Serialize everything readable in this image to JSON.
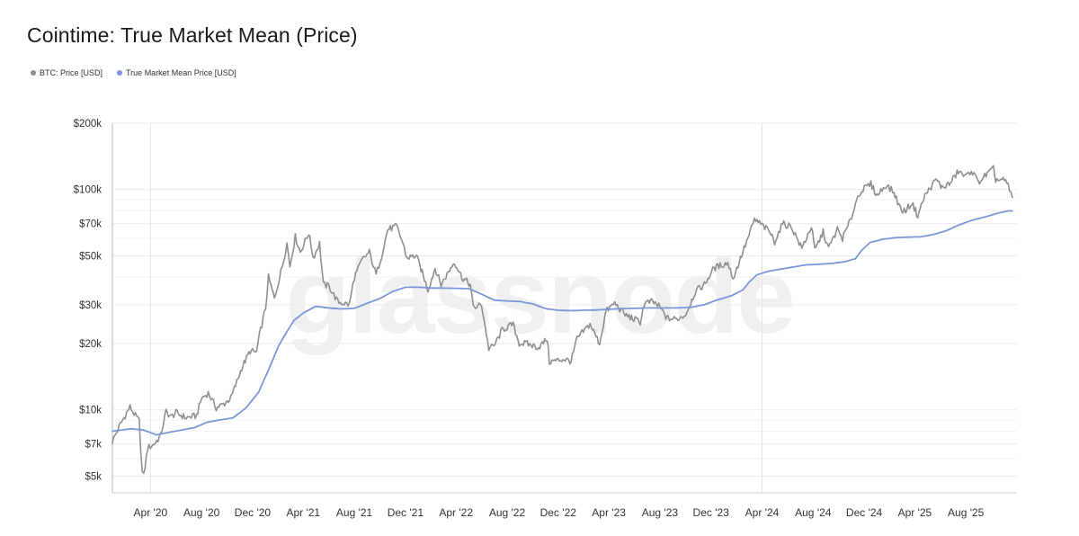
{
  "chart_data": {
    "type": "line",
    "title": "Cointime: True Market Mean (Price)",
    "watermark": "glassnode",
    "y_scale": "log",
    "ylim": [
      4200,
      200000
    ],
    "xlim": [
      "2020-01-01",
      "2025-12-01"
    ],
    "y_ticks": [
      {
        "value": 5000,
        "label": "$5k"
      },
      {
        "value": 7000,
        "label": "$7k"
      },
      {
        "value": 10000,
        "label": "$10k"
      },
      {
        "value": 20000,
        "label": "$20k"
      },
      {
        "value": 30000,
        "label": "$30k"
      },
      {
        "value": 50000,
        "label": "$50k"
      },
      {
        "value": 70000,
        "label": "$70k"
      },
      {
        "value": 100000,
        "label": "$100k"
      },
      {
        "value": 200000,
        "label": "$200k"
      }
    ],
    "x_ticks": [
      {
        "date": "2020-04-01",
        "label": "Apr '20"
      },
      {
        "date": "2020-08-01",
        "label": "Aug '20"
      },
      {
        "date": "2020-12-01",
        "label": "Dec '20"
      },
      {
        "date": "2021-04-01",
        "label": "Apr '21"
      },
      {
        "date": "2021-08-01",
        "label": "Aug '21"
      },
      {
        "date": "2021-12-01",
        "label": "Dec '21"
      },
      {
        "date": "2022-04-01",
        "label": "Apr '22"
      },
      {
        "date": "2022-08-01",
        "label": "Aug '22"
      },
      {
        "date": "2022-12-01",
        "label": "Dec '22"
      },
      {
        "date": "2023-04-01",
        "label": "Apr '23"
      },
      {
        "date": "2023-08-01",
        "label": "Aug '23"
      },
      {
        "date": "2023-12-01",
        "label": "Dec '23"
      },
      {
        "date": "2024-04-01",
        "label": "Apr '24"
      },
      {
        "date": "2024-08-01",
        "label": "Aug '24"
      },
      {
        "date": "2024-12-01",
        "label": "Dec '24"
      },
      {
        "date": "2025-04-01",
        "label": "Apr '25"
      },
      {
        "date": "2025-08-01",
        "label": "Aug '25"
      }
    ],
    "grid": true,
    "legend_position": "top-left",
    "series": [
      {
        "name": "BTC: Price [USD]",
        "color": "#8c908e",
        "points": [
          [
            "2020-01-01",
            7200
          ],
          [
            "2020-01-20",
            8600
          ],
          [
            "2020-02-12",
            10300
          ],
          [
            "2020-02-25",
            9400
          ],
          [
            "2020-03-05",
            8900
          ],
          [
            "2020-03-12",
            5200
          ],
          [
            "2020-03-16",
            5000
          ],
          [
            "2020-03-25",
            6700
          ],
          [
            "2020-04-10",
            7000
          ],
          [
            "2020-04-25",
            7600
          ],
          [
            "2020-05-08",
            9800
          ],
          [
            "2020-05-20",
            9300
          ],
          [
            "2020-06-01",
            9700
          ],
          [
            "2020-06-25",
            9200
          ],
          [
            "2020-07-20",
            9400
          ],
          [
            "2020-08-01",
            11300
          ],
          [
            "2020-08-17",
            11900
          ],
          [
            "2020-09-05",
            10200
          ],
          [
            "2020-09-25",
            10700
          ],
          [
            "2020-10-10",
            11300
          ],
          [
            "2020-10-21",
            12900
          ],
          [
            "2020-11-05",
            15500
          ],
          [
            "2020-11-25",
            18500
          ],
          [
            "2020-12-10",
            18200
          ],
          [
            "2020-12-20",
            23000
          ],
          [
            "2021-01-01",
            29000
          ],
          [
            "2021-01-08",
            40000
          ],
          [
            "2021-01-22",
            32000
          ],
          [
            "2021-02-10",
            45000
          ],
          [
            "2021-02-21",
            57000
          ],
          [
            "2021-02-28",
            45000
          ],
          [
            "2021-03-13",
            61000
          ],
          [
            "2021-03-25",
            52000
          ],
          [
            "2021-04-14",
            63500
          ],
          [
            "2021-04-25",
            49000
          ],
          [
            "2021-05-10",
            57000
          ],
          [
            "2021-05-19",
            37000
          ],
          [
            "2021-06-01",
            36500
          ],
          [
            "2021-06-22",
            31000
          ],
          [
            "2021-07-20",
            30000
          ],
          [
            "2021-08-01",
            40000
          ],
          [
            "2021-08-20",
            48000
          ],
          [
            "2021-09-06",
            52000
          ],
          [
            "2021-09-22",
            41000
          ],
          [
            "2021-10-05",
            50000
          ],
          [
            "2021-10-20",
            66000
          ],
          [
            "2021-11-10",
            68000
          ],
          [
            "2021-11-25",
            57000
          ],
          [
            "2021-12-04",
            49000
          ],
          [
            "2021-12-27",
            50000
          ],
          [
            "2022-01-10",
            42000
          ],
          [
            "2022-01-24",
            35000
          ],
          [
            "2022-02-10",
            44000
          ],
          [
            "2022-02-24",
            37000
          ],
          [
            "2022-03-28",
            47000
          ],
          [
            "2022-04-15",
            40000
          ],
          [
            "2022-05-05",
            37000
          ],
          [
            "2022-05-12",
            29000
          ],
          [
            "2022-06-01",
            30000
          ],
          [
            "2022-06-18",
            19000
          ],
          [
            "2022-07-01",
            19500
          ],
          [
            "2022-07-20",
            23000
          ],
          [
            "2022-08-15",
            24500
          ],
          [
            "2022-08-30",
            20000
          ],
          [
            "2022-09-15",
            20000
          ],
          [
            "2022-10-15",
            19200
          ],
          [
            "2022-11-05",
            21000
          ],
          [
            "2022-11-10",
            16500
          ],
          [
            "2022-12-15",
            17000
          ],
          [
            "2023-01-01",
            16600
          ],
          [
            "2023-01-15",
            21000
          ],
          [
            "2023-02-15",
            24500
          ],
          [
            "2023-03-10",
            20000
          ],
          [
            "2023-03-25",
            28000
          ],
          [
            "2023-04-15",
            30500
          ],
          [
            "2023-05-10",
            27000
          ],
          [
            "2023-06-15",
            25000
          ],
          [
            "2023-06-25",
            30500
          ],
          [
            "2023-07-15",
            31000
          ],
          [
            "2023-08-01",
            29200
          ],
          [
            "2023-08-18",
            26000
          ],
          [
            "2023-09-10",
            25800
          ],
          [
            "2023-10-01",
            27000
          ],
          [
            "2023-10-25",
            34500
          ],
          [
            "2023-11-15",
            37000
          ],
          [
            "2023-12-08",
            44000
          ],
          [
            "2024-01-10",
            46500
          ],
          [
            "2024-01-23",
            39500
          ],
          [
            "2024-02-15",
            52000
          ],
          [
            "2024-03-01",
            62000
          ],
          [
            "2024-03-14",
            73000
          ],
          [
            "2024-04-01",
            69000
          ],
          [
            "2024-04-20",
            64000
          ],
          [
            "2024-05-01",
            58000
          ],
          [
            "2024-05-20",
            70000
          ],
          [
            "2024-06-10",
            68000
          ],
          [
            "2024-07-05",
            54000
          ],
          [
            "2024-07-28",
            68000
          ],
          [
            "2024-08-05",
            53000
          ],
          [
            "2024-08-25",
            64000
          ],
          [
            "2024-09-07",
            54000
          ],
          [
            "2024-09-28",
            66000
          ],
          [
            "2024-10-10",
            60000
          ],
          [
            "2024-10-29",
            72000
          ],
          [
            "2024-11-13",
            90000
          ],
          [
            "2024-11-22",
            98000
          ],
          [
            "2024-12-17",
            106000
          ],
          [
            "2025-01-01",
            94000
          ],
          [
            "2025-01-22",
            105000
          ],
          [
            "2025-02-10",
            97000
          ],
          [
            "2025-02-28",
            80000
          ],
          [
            "2025-03-10",
            80500
          ],
          [
            "2025-03-25",
            87000
          ],
          [
            "2025-04-08",
            76000
          ],
          [
            "2025-04-25",
            94000
          ],
          [
            "2025-05-10",
            103000
          ],
          [
            "2025-05-22",
            111000
          ],
          [
            "2025-06-05",
            102000
          ],
          [
            "2025-06-25",
            107000
          ],
          [
            "2025-07-14",
            121000
          ],
          [
            "2025-08-01",
            114000
          ],
          [
            "2025-08-14",
            123000
          ],
          [
            "2025-08-30",
            108000
          ],
          [
            "2025-09-15",
            115000
          ],
          [
            "2025-10-06",
            124000
          ],
          [
            "2025-10-11",
            111000
          ],
          [
            "2025-11-01",
            110000
          ],
          [
            "2025-11-10",
            104000
          ],
          [
            "2025-11-20",
            92000
          ]
        ]
      },
      {
        "name": "True Market Mean Price [USD]",
        "color": "#7c97d8",
        "points": [
          [
            "2020-01-01",
            8000
          ],
          [
            "2020-02-15",
            8200
          ],
          [
            "2020-03-15",
            8100
          ],
          [
            "2020-04-15",
            7700
          ],
          [
            "2020-05-15",
            7900
          ],
          [
            "2020-06-15",
            8100
          ],
          [
            "2020-07-15",
            8300
          ],
          [
            "2020-08-15",
            8800
          ],
          [
            "2020-09-15",
            9000
          ],
          [
            "2020-10-15",
            9200
          ],
          [
            "2020-11-15",
            10200
          ],
          [
            "2020-12-15",
            12000
          ],
          [
            "2021-01-10",
            15500
          ],
          [
            "2021-02-01",
            19500
          ],
          [
            "2021-02-20",
            22500
          ],
          [
            "2021-03-10",
            25500
          ],
          [
            "2021-04-01",
            27500
          ],
          [
            "2021-05-01",
            29500
          ],
          [
            "2021-06-01",
            29000
          ],
          [
            "2021-07-01",
            28700
          ],
          [
            "2021-08-01",
            28900
          ],
          [
            "2021-09-01",
            30500
          ],
          [
            "2021-10-01",
            32000
          ],
          [
            "2021-11-01",
            34500
          ],
          [
            "2021-12-01",
            36000
          ],
          [
            "2022-01-01",
            36000
          ],
          [
            "2022-02-01",
            35700
          ],
          [
            "2022-03-01",
            35700
          ],
          [
            "2022-04-01",
            35600
          ],
          [
            "2022-05-01",
            35500
          ],
          [
            "2022-06-01",
            33500
          ],
          [
            "2022-07-01",
            31500
          ],
          [
            "2022-08-01",
            31200
          ],
          [
            "2022-09-01",
            31000
          ],
          [
            "2022-10-01",
            30300
          ],
          [
            "2022-11-01",
            28800
          ],
          [
            "2022-12-01",
            28300
          ],
          [
            "2023-01-01",
            28200
          ],
          [
            "2023-03-01",
            28400
          ],
          [
            "2023-05-01",
            28800
          ],
          [
            "2023-07-01",
            29000
          ],
          [
            "2023-09-01",
            29000
          ],
          [
            "2023-10-15",
            29200
          ],
          [
            "2023-11-15",
            30000
          ],
          [
            "2023-12-15",
            31500
          ],
          [
            "2024-01-20",
            33000
          ],
          [
            "2024-02-15",
            35000
          ],
          [
            "2024-03-01",
            38000
          ],
          [
            "2024-03-20",
            41000
          ],
          [
            "2024-04-15",
            42500
          ],
          [
            "2024-05-15",
            43500
          ],
          [
            "2024-06-15",
            44500
          ],
          [
            "2024-07-15",
            45500
          ],
          [
            "2024-08-15",
            45800
          ],
          [
            "2024-09-15",
            46200
          ],
          [
            "2024-10-15",
            47000
          ],
          [
            "2024-11-10",
            48500
          ],
          [
            "2024-11-25",
            53000
          ],
          [
            "2024-12-15",
            57500
          ],
          [
            "2025-01-15",
            59500
          ],
          [
            "2025-02-15",
            60500
          ],
          [
            "2025-03-15",
            60800
          ],
          [
            "2025-04-15",
            61000
          ],
          [
            "2025-05-15",
            62500
          ],
          [
            "2025-06-15",
            65000
          ],
          [
            "2025-07-15",
            69000
          ],
          [
            "2025-08-15",
            72500
          ],
          [
            "2025-09-15",
            75000
          ],
          [
            "2025-10-15",
            78000
          ],
          [
            "2025-11-10",
            80000
          ],
          [
            "2025-11-20",
            80000
          ]
        ]
      }
    ]
  }
}
